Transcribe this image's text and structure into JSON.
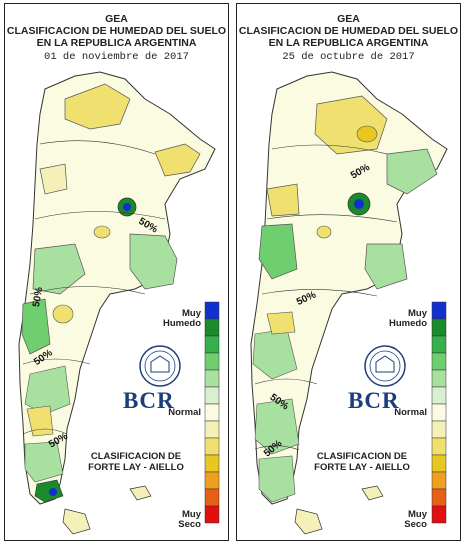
{
  "panels": [
    {
      "title_line1": "GEA",
      "title_line2": "CLASIFICACION DE HUMEDAD DEL SUELO",
      "title_line3": "EN LA REPUBLICA ARGENTINA",
      "date": "01 de noviembre de 2017",
      "iso_labels": [
        "50%",
        "50%",
        "50%",
        "50%"
      ]
    },
    {
      "title_line1": "GEA",
      "title_line2": "CLASIFICACION DE HUMEDAD DEL SUELO",
      "title_line3": "EN LA REPUBLICA ARGENTINA",
      "date": "25 de octubre de 2017",
      "iso_labels": [
        "50%",
        "50%",
        "50%",
        "50%"
      ]
    }
  ],
  "legend": {
    "top_label_1": "Muy",
    "top_label_2": "Humedo",
    "mid_label": "Normal",
    "bottom_label_1": "Muy",
    "bottom_label_2": "Seco",
    "colors": [
      "#1030d0",
      "#1a8a2a",
      "#35b04a",
      "#6fcf6f",
      "#a8e0a0",
      "#d8f0d0",
      "#fbfbe2",
      "#f5f0b8",
      "#f0e070",
      "#e8c820",
      "#f0a020",
      "#e86018",
      "#e01010"
    ]
  },
  "logo": {
    "text": "BCR"
  },
  "classification": {
    "line1": "CLASIFICACION DE",
    "line2": "FORTE LAY - AIELLO"
  },
  "palette": {
    "very_wet": "#1030d0",
    "wet": "#35b04a",
    "normal": "#fbfbe2",
    "dry": "#f0e070",
    "very_dry": "#e01010"
  }
}
